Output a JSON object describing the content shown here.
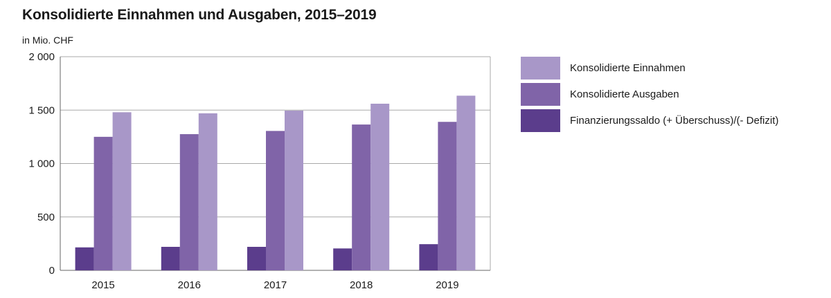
{
  "chart_data": {
    "type": "bar",
    "title": "Konsolidierte Einnahmen und Ausgaben, 2015–2019",
    "unit_label": "in Mio. CHF",
    "categories": [
      "2015",
      "2016",
      "2017",
      "2018",
      "2019"
    ],
    "series": [
      {
        "name": "Finanzierungssaldo (+ Überschuss)/(- Defizit)",
        "color": "#5b3d8c",
        "values": [
          215,
          220,
          220,
          205,
          245
        ]
      },
      {
        "name": "Konsolidierte Ausgaben",
        "color": "#8064a8",
        "values": [
          1250,
          1275,
          1305,
          1365,
          1390
        ]
      },
      {
        "name": "Konsolidierte Einnahmen",
        "color": "#a897c8",
        "values": [
          1480,
          1470,
          1495,
          1560,
          1635
        ]
      }
    ],
    "legend_order": [
      2,
      1,
      0
    ],
    "ylim": [
      0,
      2000
    ],
    "yticks": [
      0,
      500,
      1000,
      1500,
      2000
    ],
    "ytick_labels": [
      "0",
      "500",
      "1 000",
      "1 500",
      "2 000"
    ],
    "grid": true,
    "legend_position": "right",
    "colors": {
      "grid": "#a8a8a8",
      "axis": "#666666"
    }
  }
}
